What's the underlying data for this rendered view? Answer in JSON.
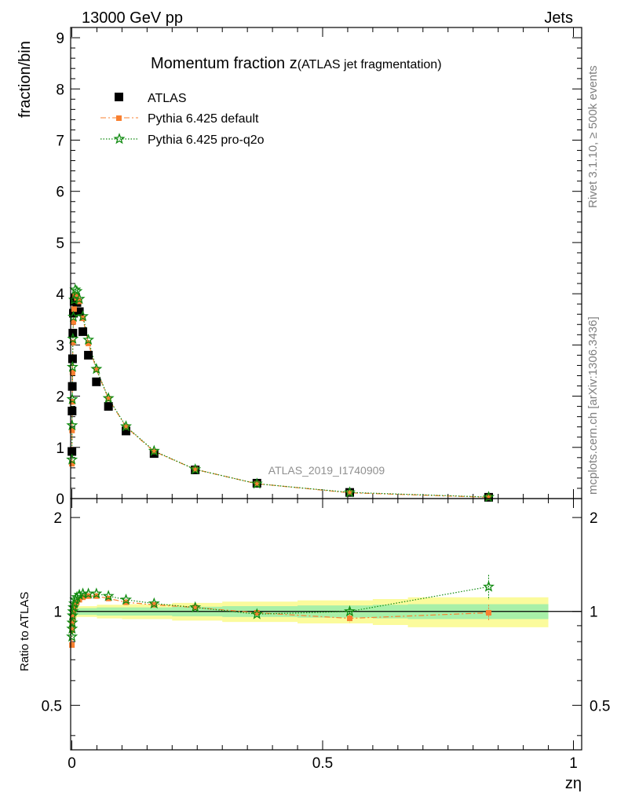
{
  "header": {
    "left": "13000 GeV pp",
    "right": "Jets"
  },
  "side_labels": {
    "rivet": "Rivet 3.1.10, ≥ 500k events",
    "mcplots": "mcplots.cern.ch [arXiv:1306.3436]"
  },
  "analysis_id": "ATLAS_2019_I1740909",
  "colors": {
    "atlas": "#000000",
    "default": "#f98030",
    "pro_q2o": "#0f8a0f",
    "band_inner": "#a8f0a8",
    "band_outer": "#fbfb9c"
  },
  "chart_data": [
    {
      "type": "scatter",
      "title_main": "Momentum fraction z",
      "title_sub": "(ATLAS jet fragmentation)",
      "ylabel": "fraction/bin",
      "xlim": [
        0,
        1
      ],
      "ylim": [
        0,
        9.2
      ],
      "yticks": [
        0,
        1,
        2,
        3,
        4,
        5,
        6,
        7,
        8,
        9
      ],
      "legend_position": "top-left",
      "series": [
        {
          "name": "ATLAS",
          "marker": "square",
          "x": [
            0.0002,
            0.0005,
            0.0009,
            0.0014,
            0.0021,
            0.0031,
            0.0046,
            0.0068,
            0.01,
            0.015,
            0.022,
            0.033,
            0.049,
            0.073,
            0.108,
            0.164,
            0.246,
            0.369,
            0.554,
            0.831
          ],
          "y": [
            0.92,
            1.71,
            2.19,
            2.73,
            3.23,
            3.62,
            3.85,
            3.92,
            3.83,
            3.65,
            3.26,
            2.8,
            2.28,
            1.8,
            1.32,
            0.88,
            0.56,
            0.3,
            0.12,
            0.025
          ]
        },
        {
          "name": "Pythia 6.425 default",
          "marker": "square-small",
          "line": "dash-dot",
          "x": [
            0.0002,
            0.0005,
            0.0009,
            0.0014,
            0.0021,
            0.0031,
            0.0046,
            0.0068,
            0.01,
            0.015,
            0.022,
            0.033,
            0.049,
            0.073,
            0.108,
            0.164,
            0.246,
            0.369,
            0.554,
            0.831
          ],
          "y": [
            0.68,
            1.33,
            1.89,
            2.46,
            3.05,
            3.45,
            3.7,
            3.98,
            3.92,
            3.85,
            3.52,
            3.03,
            2.52,
            1.95,
            1.4,
            0.92,
            0.57,
            0.29,
            0.113,
            0.025
          ]
        },
        {
          "name": "Pythia 6.425 pro-q2o",
          "marker": "star",
          "line": "dotted",
          "x": [
            0.0002,
            0.0005,
            0.0009,
            0.0014,
            0.0021,
            0.0031,
            0.0046,
            0.0068,
            0.01,
            0.015,
            0.022,
            0.033,
            0.049,
            0.073,
            0.108,
            0.164,
            0.246,
            0.369,
            0.554,
            0.831
          ],
          "y": [
            0.76,
            1.43,
            1.94,
            2.57,
            3.12,
            3.55,
            3.88,
            4.08,
            4.05,
            3.9,
            3.56,
            3.1,
            2.53,
            1.96,
            1.41,
            0.93,
            0.57,
            0.29,
            0.12,
            0.03
          ]
        }
      ]
    },
    {
      "type": "scatter",
      "ylabel": "Ratio to ATLAS",
      "xlabel": "zη",
      "xlim": [
        0,
        1
      ],
      "xticks": [
        0,
        0.5,
        1
      ],
      "ylim": [
        0.36,
        2.3
      ],
      "yticks": [
        0.5,
        1,
        2
      ],
      "reference": 1,
      "band_x": [
        0,
        0.003,
        0.01,
        0.05,
        0.1,
        0.2,
        0.3,
        0.45,
        0.6,
        0.67,
        0.95
      ],
      "band_inner": [
        [
          0.96,
          1.04
        ],
        [
          0.97,
          1.03
        ],
        [
          0.975,
          1.025
        ],
        [
          0.97,
          1.03
        ],
        [
          0.97,
          1.03
        ],
        [
          0.965,
          1.035
        ],
        [
          0.96,
          1.04
        ],
        [
          0.955,
          1.045
        ],
        [
          0.95,
          1.05
        ],
        [
          0.945,
          1.055
        ],
        [
          0.945,
          1.055
        ]
      ],
      "band_outer": [
        [
          0.93,
          1.07
        ],
        [
          0.95,
          1.05
        ],
        [
          0.96,
          1.04
        ],
        [
          0.95,
          1.05
        ],
        [
          0.945,
          1.055
        ],
        [
          0.935,
          1.065
        ],
        [
          0.925,
          1.075
        ],
        [
          0.915,
          1.085
        ],
        [
          0.905,
          1.095
        ],
        [
          0.89,
          1.11
        ],
        [
          0.89,
          1.11
        ]
      ],
      "series": [
        {
          "name": "Pythia 6.425 default",
          "x": [
            0.0002,
            0.0005,
            0.0009,
            0.0014,
            0.0021,
            0.0031,
            0.0046,
            0.0068,
            0.01,
            0.015,
            0.022,
            0.033,
            0.049,
            0.073,
            0.108,
            0.164,
            0.246,
            0.369,
            0.554,
            0.831
          ],
          "y": [
            0.78,
            0.87,
            0.91,
            0.94,
            0.97,
            0.99,
            1.02,
            1.05,
            1.07,
            1.09,
            1.11,
            1.12,
            1.12,
            1.1,
            1.07,
            1.05,
            1.03,
            0.99,
            0.95,
            0.99
          ],
          "err": [
            0,
            0,
            0,
            0,
            0,
            0,
            0,
            0,
            0,
            0,
            0,
            0,
            0,
            0,
            0,
            0,
            0,
            0,
            0.03,
            0.06
          ]
        },
        {
          "name": "Pythia 6.425 pro-q2o",
          "x": [
            0.0002,
            0.0005,
            0.0009,
            0.0014,
            0.0021,
            0.0031,
            0.0046,
            0.0068,
            0.01,
            0.015,
            0.022,
            0.033,
            0.049,
            0.073,
            0.108,
            0.164,
            0.246,
            0.369,
            0.554,
            0.831
          ],
          "y": [
            0.83,
            0.88,
            0.92,
            0.97,
            1.0,
            1.03,
            1.06,
            1.09,
            1.11,
            1.13,
            1.14,
            1.14,
            1.14,
            1.12,
            1.09,
            1.06,
            1.03,
            0.98,
            1.0,
            1.2
          ],
          "err": [
            0,
            0,
            0,
            0,
            0,
            0,
            0,
            0,
            0,
            0,
            0,
            0,
            0,
            0,
            0,
            0,
            0,
            0,
            0.02,
            0.11
          ]
        }
      ]
    }
  ]
}
